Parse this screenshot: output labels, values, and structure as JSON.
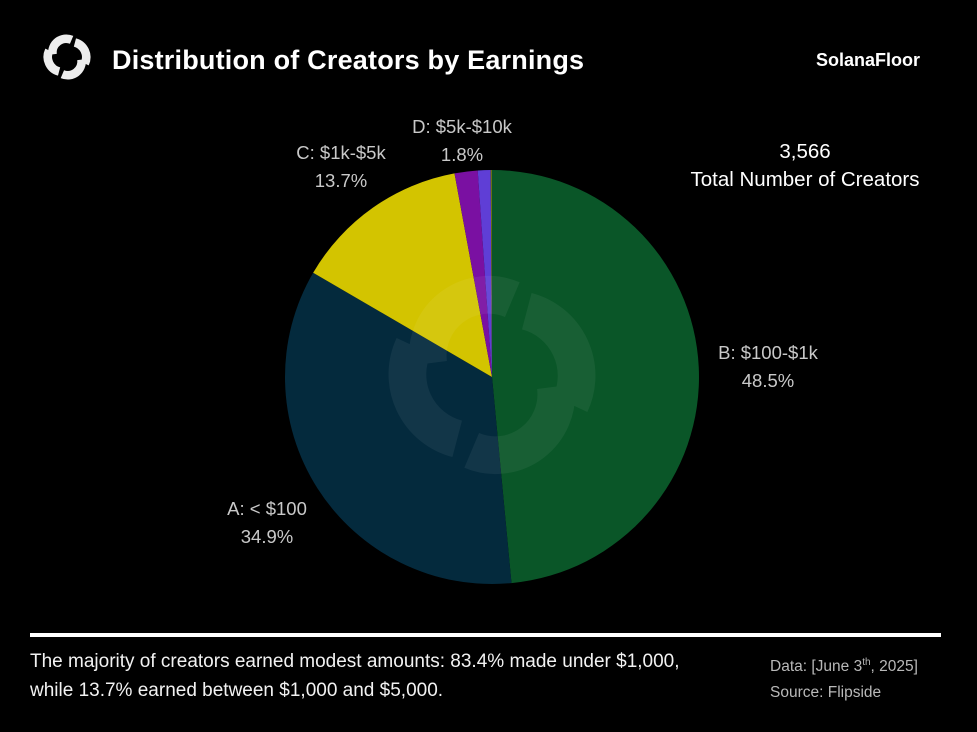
{
  "header": {
    "title": "Distribution of Creators by Earnings",
    "brand": "SolanaFloor"
  },
  "stat": {
    "value": "3,566",
    "label": "Total Number of Creators"
  },
  "chart_data": {
    "type": "pie",
    "title": "Distribution of Creators by Earnings",
    "total_creators": 3566,
    "start_angle_deg": 0,
    "direction": "clockwise",
    "legend_position": "around-pie",
    "segments": [
      {
        "label": "B: $100-$1k",
        "pct": 48.5,
        "pct_label": "48.5%",
        "color": "#0a5628"
      },
      {
        "label": "A: < $100",
        "pct": 34.9,
        "pct_label": "34.9%",
        "color": "#042a3d"
      },
      {
        "label": "C: $1k-$5k",
        "pct": 13.7,
        "pct_label": "13.7%",
        "color": "#d3c400"
      },
      {
        "label": "D: $5k-$10k",
        "pct": 1.8,
        "pct_label": "1.8%",
        "color": "#7a10a2"
      },
      {
        "label": "",
        "pct": 1.0,
        "pct_label": "",
        "color": "#5f3ed6"
      },
      {
        "label": "",
        "pct": 0.1,
        "pct_label": "",
        "color": "#6a6e14"
      }
    ]
  },
  "footer": {
    "summary": "The majority of creators earned modest amounts: 83.4% made under $1,000, while 13.7% earned between $1,000 and $5,000.",
    "data_prefix": "Data: [June 3",
    "data_sup": "th",
    "data_suffix": ", 2025]",
    "source": "Source: Flipside"
  }
}
